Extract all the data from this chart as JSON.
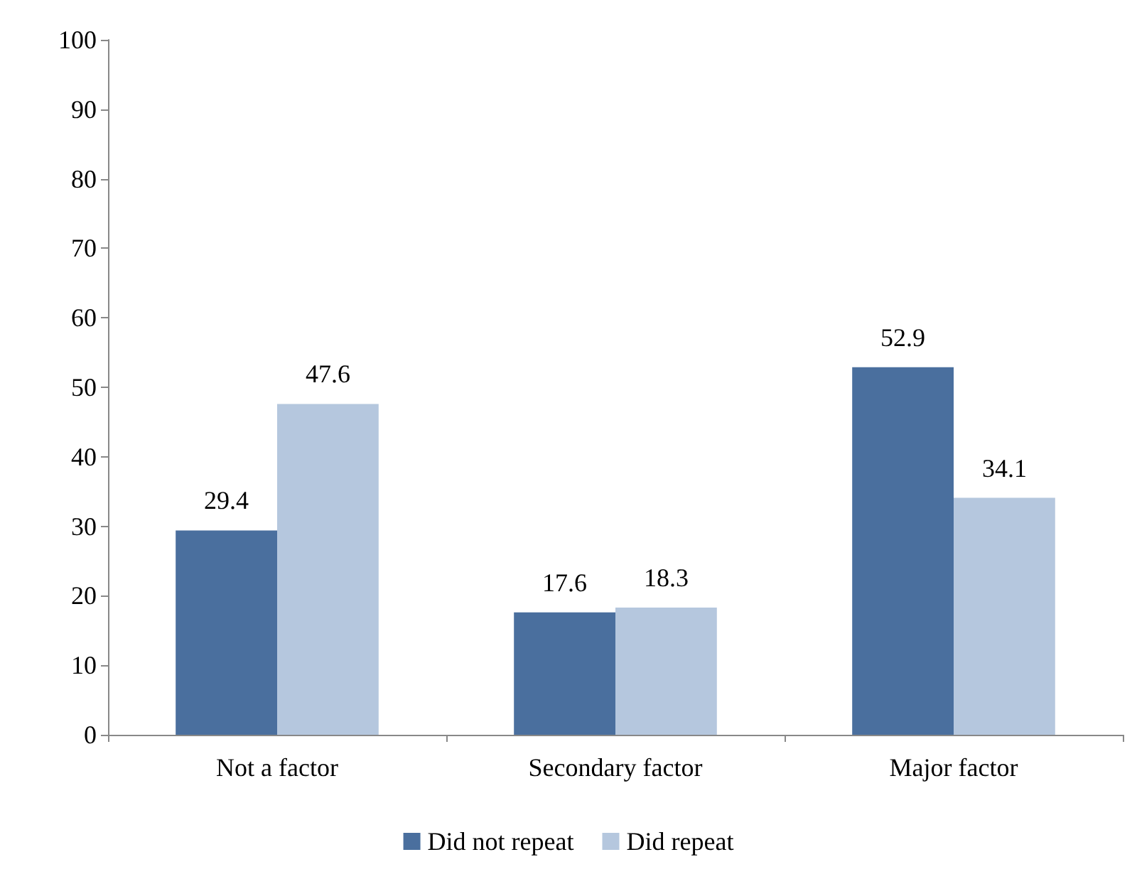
{
  "chart_data": {
    "type": "bar",
    "categories": [
      "Not a factor",
      "Secondary factor",
      "Major factor"
    ],
    "series": [
      {
        "name": "Did not repeat",
        "color": "#4a6f9e",
        "values": [
          29.4,
          17.6,
          52.9
        ]
      },
      {
        "name": "Did repeat",
        "color": "#b5c7de",
        "values": [
          47.6,
          18.3,
          34.1
        ]
      }
    ],
    "ylim": [
      0,
      100
    ],
    "yticks": [
      0,
      10,
      20,
      30,
      40,
      50,
      60,
      70,
      80,
      90,
      100
    ],
    "grid": false,
    "legend": "bottom",
    "data_labels": true
  }
}
